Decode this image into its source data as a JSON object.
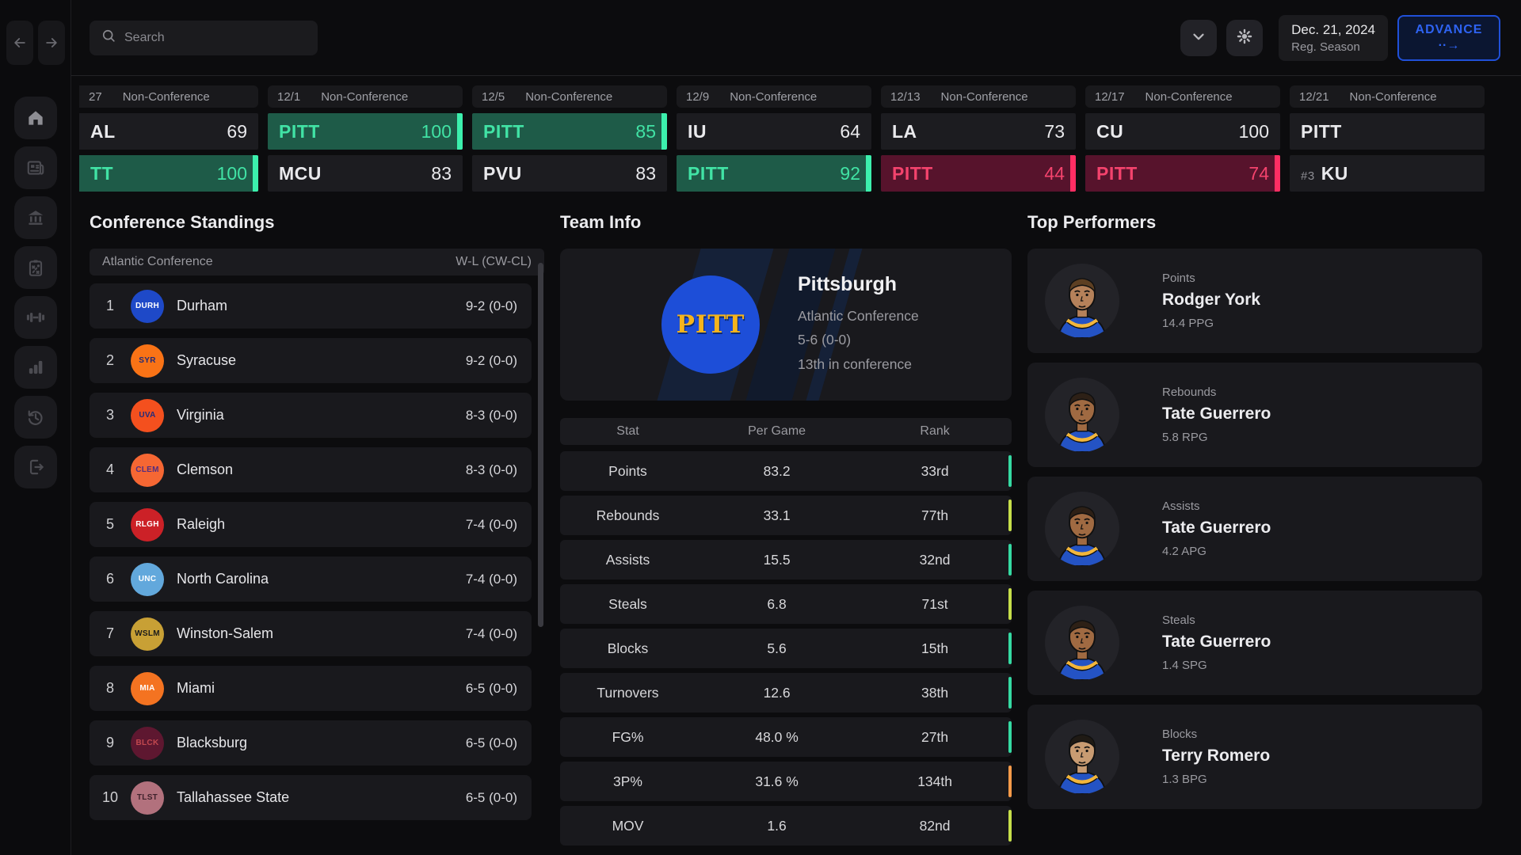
{
  "topbar": {
    "search_placeholder": "Search",
    "date": "Dec. 21, 2024",
    "season": "Reg. Season",
    "advance_label": "ADVANCE",
    "advance_arrow": "··→"
  },
  "sidebar": {
    "nav": [
      {
        "icon": "back-arrow-icon"
      },
      {
        "icon": "forward-arrow-icon"
      }
    ],
    "items": [
      {
        "icon": "home-icon",
        "active": true
      },
      {
        "icon": "news-icon",
        "active": false
      },
      {
        "icon": "institution-icon",
        "active": false
      },
      {
        "icon": "tactics-clipboard-icon",
        "active": false
      },
      {
        "icon": "dumbbell-icon",
        "active": false
      },
      {
        "icon": "bar-chart-icon",
        "active": false
      },
      {
        "icon": "history-icon",
        "active": false
      },
      {
        "icon": "exit-icon",
        "active": false
      }
    ]
  },
  "scores": [
    {
      "date": "27",
      "type": "Non-Conference",
      "clipped": true,
      "rows": [
        {
          "team": "AL",
          "score": "69",
          "result": "neutral"
        },
        {
          "team": "TT",
          "score": "100",
          "result": "win"
        }
      ]
    },
    {
      "date": "12/1",
      "type": "Non-Conference",
      "rows": [
        {
          "team": "PITT",
          "score": "100",
          "result": "win"
        },
        {
          "team": "MCU",
          "score": "83",
          "result": "neutral"
        }
      ]
    },
    {
      "date": "12/5",
      "type": "Non-Conference",
      "rows": [
        {
          "team": "PITT",
          "score": "85",
          "result": "win"
        },
        {
          "team": "PVU",
          "score": "83",
          "result": "neutral"
        }
      ]
    },
    {
      "date": "12/9",
      "type": "Non-Conference",
      "rows": [
        {
          "team": "IU",
          "score": "64",
          "result": "neutral"
        },
        {
          "team": "PITT",
          "score": "92",
          "result": "win"
        }
      ]
    },
    {
      "date": "12/13",
      "type": "Non-Conference",
      "rows": [
        {
          "team": "LA",
          "score": "73",
          "result": "neutral"
        },
        {
          "team": "PITT",
          "score": "44",
          "result": "loss"
        }
      ]
    },
    {
      "date": "12/17",
      "type": "Non-Conference",
      "rows": [
        {
          "team": "CU",
          "score": "100",
          "result": "neutral"
        },
        {
          "team": "PITT",
          "score": "74",
          "result": "loss"
        }
      ]
    },
    {
      "date": "12/21",
      "type": "Non-Conference",
      "rows": [
        {
          "team": "PITT",
          "score": "",
          "result": "neutral"
        },
        {
          "team": "KU",
          "rank_prefix": "#3",
          "score": "",
          "result": "neutral"
        }
      ]
    }
  ],
  "standings": {
    "title": "Conference Standings",
    "header_left": "Atlantic Conference",
    "header_right": "W-L (CW-CL)",
    "rows": [
      {
        "rank": "1",
        "abbr": "DURH",
        "team": "Durham",
        "record": "9-2 (0-0)",
        "logo_bg": "#1e49c8",
        "logo_text": "#ffffff"
      },
      {
        "rank": "2",
        "abbr": "SYR",
        "team": "Syracuse",
        "record": "9-2 (0-0)",
        "logo_bg": "#f97316",
        "logo_text": "#1e2a78"
      },
      {
        "rank": "3",
        "abbr": "UVA",
        "team": "Virginia",
        "record": "8-3 (0-0)",
        "logo_bg": "#f4501e",
        "logo_text": "#232d7c"
      },
      {
        "rank": "4",
        "abbr": "CLEM",
        "team": "Clemson",
        "record": "8-3 (0-0)",
        "logo_bg": "#f66733",
        "logo_text": "#522d80"
      },
      {
        "rank": "5",
        "abbr": "RLGH",
        "team": "Raleigh",
        "record": "7-4 (0-0)",
        "logo_bg": "#cc2127",
        "logo_text": "#ffffff"
      },
      {
        "rank": "6",
        "abbr": "UNC",
        "team": "North Carolina",
        "record": "7-4 (0-0)",
        "logo_bg": "#62a8dc",
        "logo_text": "#ffffff"
      },
      {
        "rank": "7",
        "abbr": "WSLM",
        "team": "Winston-Salem",
        "record": "7-4 (0-0)",
        "logo_bg": "#c8a035",
        "logo_text": "#1b1b1b"
      },
      {
        "rank": "8",
        "abbr": "MIA",
        "team": "Miami",
        "record": "6-5 (0-0)",
        "logo_bg": "#f47321",
        "logo_text": "#ffffff"
      },
      {
        "rank": "9",
        "abbr": "BLCK",
        "team": "Blacksburg",
        "record": "6-5 (0-0)",
        "logo_bg": "#5e1730",
        "logo_text": "#c2484f"
      },
      {
        "rank": "10",
        "abbr": "TLST",
        "team": "Tallahassee State",
        "record": "6-5 (0-0)",
        "logo_bg": "#b2717d",
        "logo_text": "#40222c"
      }
    ]
  },
  "team_info": {
    "title": "Team Info",
    "logo_abbr": "PITT",
    "name": "Pittsburgh",
    "conference": "Atlantic Conference",
    "record": "5-6 (0-0)",
    "position": "13th in conference",
    "table": {
      "headers": [
        "Stat",
        "Per Game",
        "Rank"
      ],
      "rows": [
        {
          "stat": "Points",
          "value": "83.2",
          "rank": "33rd",
          "bar": "#35d9a2"
        },
        {
          "stat": "Rebounds",
          "value": "33.1",
          "rank": "77th",
          "bar": "#c6de4a"
        },
        {
          "stat": "Assists",
          "value": "15.5",
          "rank": "32nd",
          "bar": "#35d9a2"
        },
        {
          "stat": "Steals",
          "value": "6.8",
          "rank": "71st",
          "bar": "#c6de4a"
        },
        {
          "stat": "Blocks",
          "value": "5.6",
          "rank": "15th",
          "bar": "#35d9a2"
        },
        {
          "stat": "Turnovers",
          "value": "12.6",
          "rank": "38th",
          "bar": "#35d9a2"
        },
        {
          "stat": "FG%",
          "value": "48.0 %",
          "rank": "27th",
          "bar": "#35d9a2"
        },
        {
          "stat": "3P%",
          "value": "31.6 %",
          "rank": "134th",
          "bar": "#f59a49"
        },
        {
          "stat": "MOV",
          "value": "1.6",
          "rank": "82nd",
          "bar": "#c6de4a"
        }
      ]
    }
  },
  "performers": {
    "title": "Top Performers",
    "cards": [
      {
        "category": "Points",
        "name": "Rodger York",
        "stat": "14.4 PPG",
        "skin": "#b5815a",
        "hair": "#5d3f22"
      },
      {
        "category": "Rebounds",
        "name": "Tate Guerrero",
        "stat": "5.8 RPG",
        "skin": "#a06a42",
        "hair": "#2d2016"
      },
      {
        "category": "Assists",
        "name": "Tate Guerrero",
        "stat": "4.2 APG",
        "skin": "#a06a42",
        "hair": "#2d2016"
      },
      {
        "category": "Steals",
        "name": "Tate Guerrero",
        "stat": "1.4 SPG",
        "skin": "#a06a42",
        "hair": "#2d2016"
      },
      {
        "category": "Blocks",
        "name": "Terry Romero",
        "stat": "1.3 BPG",
        "skin": "#c89b72",
        "hair": "#1f1a14"
      }
    ]
  },
  "colors": {
    "accent_blue": "#2e63f2",
    "win_green": "#3cf0ad",
    "loss_red": "#ff2e63",
    "pitt_blue": "#1d4ed8",
    "pitt_gold": "#f5b41c"
  }
}
